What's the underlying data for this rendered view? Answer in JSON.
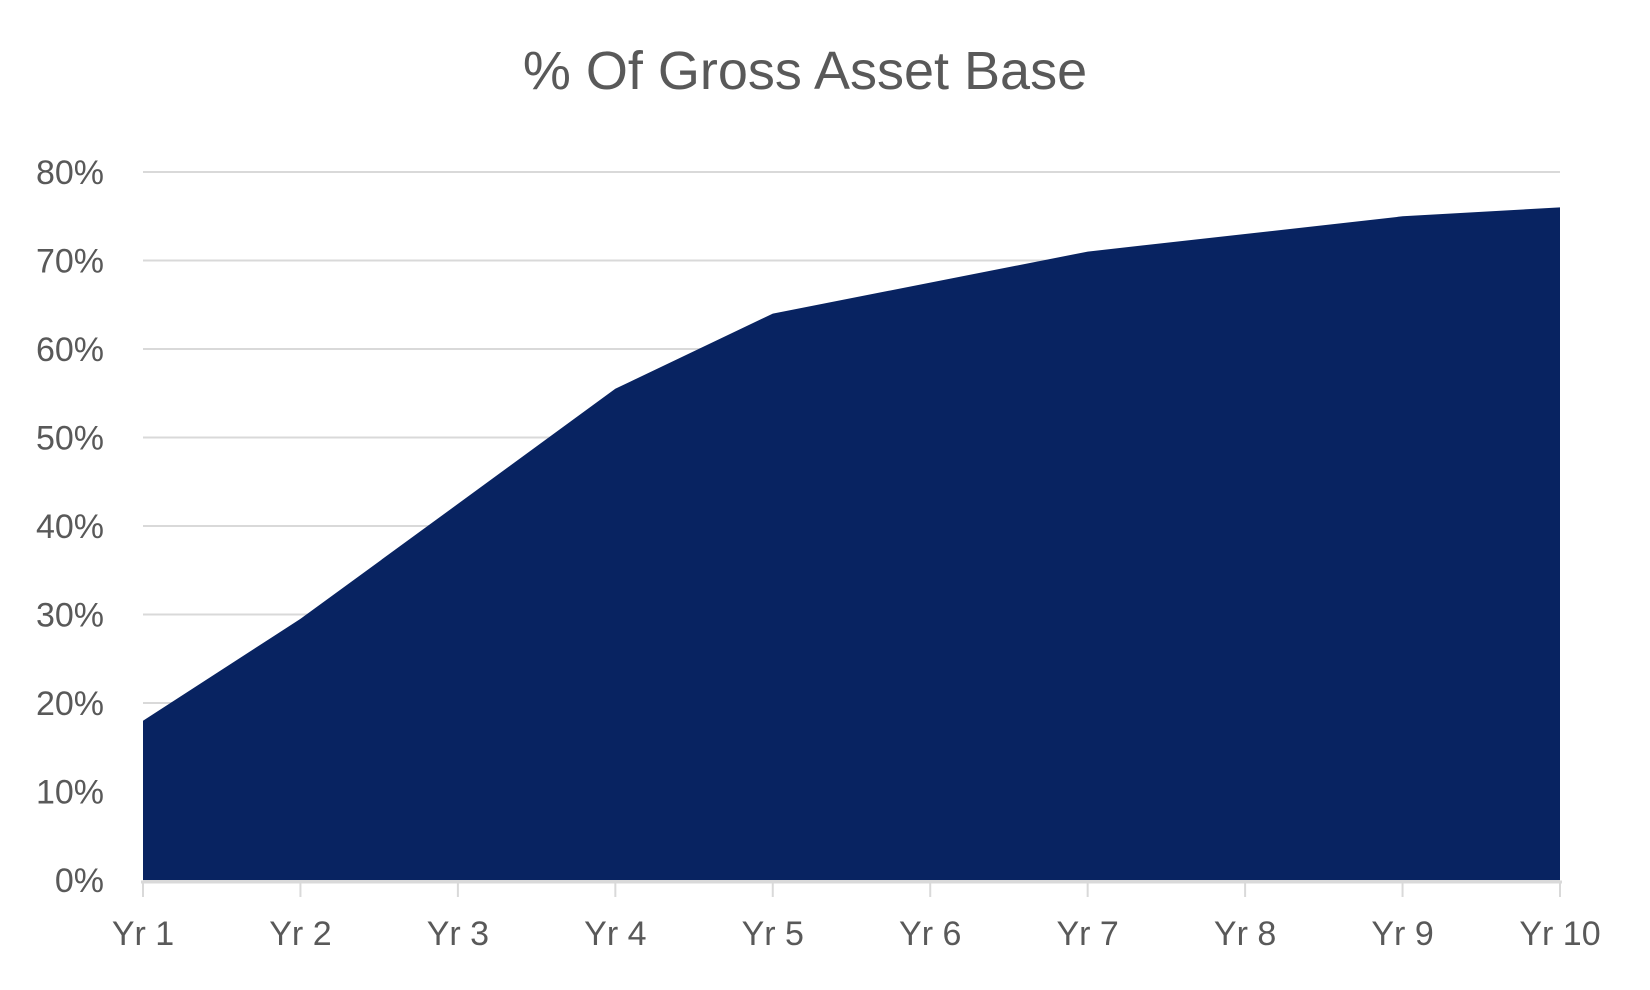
{
  "chart_data": {
    "type": "area",
    "title": "% Of Gross Asset Base",
    "categories": [
      "Yr 1",
      "Yr 2",
      "Yr 3",
      "Yr 4",
      "Yr 5",
      "Yr 6",
      "Yr 7",
      "Yr 8",
      "Yr 9",
      "Yr 10"
    ],
    "values": [
      18,
      29.5,
      42.5,
      55.5,
      64,
      67.5,
      71,
      73,
      75,
      76
    ],
    "unit": "%",
    "xlabel": "",
    "ylabel": "",
    "ylim": [
      0,
      80
    ],
    "ytick_step": 10,
    "ytick_labels": [
      "0%",
      "10%",
      "20%",
      "30%",
      "40%",
      "50%",
      "60%",
      "70%",
      "80%"
    ],
    "grid": "horizontal-only",
    "legend": "none",
    "colors": {
      "area_fill": "#082361",
      "gridline": "#D9D9D9",
      "axis_line": "#D9D9D9",
      "tick_mark": "#D9D9D9",
      "axis_label": "#595959",
      "title": "#595959",
      "background": "#FFFFFF"
    }
  }
}
